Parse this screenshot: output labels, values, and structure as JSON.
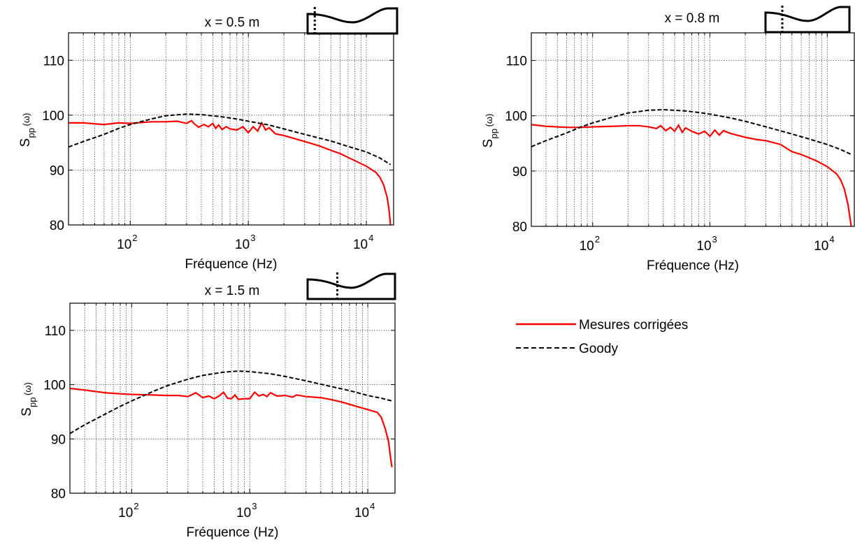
{
  "colors": {
    "measured": "#ff0000",
    "goody": "#000000"
  },
  "legend": {
    "placement": "right-middle",
    "entries": [
      {
        "name": "Mesures corrigées",
        "color": "#ff0000",
        "style": "solid"
      },
      {
        "name": "Goody",
        "color": "#000000",
        "style": "dashed"
      }
    ]
  },
  "chart_data": [
    {
      "type": "line",
      "title": "x = 0.5 m",
      "xlabel": "Fréquence (Hz)",
      "ylabel_main": "S",
      "ylabel_sub": "pp",
      "ylabel_arg": "(ω)",
      "xscale": "log",
      "xlim": [
        30,
        17000
      ],
      "ylim": [
        80,
        115
      ],
      "yticks": [
        80,
        90,
        100,
        110
      ],
      "xticks_base": "10",
      "xticks_exp": [
        "2",
        "3",
        "4"
      ],
      "grid": true,
      "probe_position": 0.08,
      "series": [
        {
          "name": "Mesures corrigées",
          "x": [
            30,
            40,
            60,
            80,
            100,
            150,
            200,
            250,
            300,
            330,
            350,
            380,
            420,
            460,
            500,
            530,
            560,
            600,
            650,
            700,
            800,
            900,
            1000,
            1100,
            1200,
            1300,
            1400,
            1500,
            1700,
            2000,
            2500,
            3000,
            4000,
            5000,
            6000,
            8000,
            10000,
            12000,
            13000,
            14000,
            15000,
            15500,
            16000
          ],
          "y": [
            98.6,
            98.6,
            98.3,
            98.6,
            98.5,
            98.8,
            98.8,
            98.9,
            98.5,
            99.0,
            98.4,
            97.8,
            98.3,
            97.9,
            98.5,
            97.6,
            98.2,
            97.4,
            97.9,
            97.5,
            97.3,
            97.9,
            96.8,
            97.9,
            97.1,
            98.6,
            97.3,
            97.7,
            96.6,
            96.3,
            95.7,
            95.2,
            94.4,
            93.6,
            93.0,
            91.7,
            90.7,
            89.6,
            88.7,
            87.3,
            85.0,
            83.0,
            80.0
          ]
        },
        {
          "name": "Goody",
          "x": [
            30,
            40,
            60,
            80,
            100,
            150,
            200,
            300,
            400,
            600,
            800,
            1000,
            1500,
            2000,
            3000,
            5000,
            7000,
            10000,
            13000,
            16000
          ],
          "y": [
            94.2,
            95.2,
            96.5,
            97.6,
            98.3,
            99.3,
            99.9,
            100.2,
            100.1,
            99.7,
            99.3,
            98.9,
            98.2,
            97.5,
            96.5,
            95.3,
            94.3,
            93.3,
            92.2,
            91.0
          ]
        }
      ]
    },
    {
      "type": "line",
      "title": "x = 0.8 m",
      "xlabel": "Fréquence (Hz)",
      "ylabel_main": "S",
      "ylabel_sub": "pp",
      "ylabel_arg": "(ω)",
      "xscale": "log",
      "xlim": [
        30,
        17000
      ],
      "ylim": [
        80,
        115
      ],
      "yticks": [
        80,
        90,
        100,
        110
      ],
      "xticks_base": "10",
      "xticks_exp": [
        "2",
        "3",
        "4"
      ],
      "grid": true,
      "probe_position": 0.2,
      "series": [
        {
          "name": "Mesures corrigées",
          "x": [
            30,
            40,
            60,
            80,
            100,
            150,
            200,
            250,
            300,
            350,
            380,
            420,
            460,
            500,
            540,
            580,
            620,
            700,
            800,
            900,
            1000,
            1100,
            1200,
            1300,
            1500,
            1700,
            2000,
            2500,
            3000,
            4000,
            5000,
            6000,
            8000,
            10000,
            12000,
            13000,
            14000,
            15000,
            15500,
            16000
          ],
          "y": [
            98.4,
            98.1,
            97.9,
            97.9,
            98.0,
            98.1,
            98.2,
            98.2,
            98.0,
            97.7,
            98.2,
            97.3,
            97.9,
            97.2,
            98.3,
            97.0,
            97.8,
            97.2,
            96.7,
            97.2,
            96.3,
            97.4,
            96.5,
            97.3,
            96.8,
            96.5,
            96.1,
            95.7,
            95.5,
            94.8,
            93.5,
            93.0,
            91.9,
            90.8,
            89.5,
            88.4,
            86.7,
            84.0,
            82.0,
            80.0
          ]
        },
        {
          "name": "Goody",
          "x": [
            30,
            40,
            60,
            80,
            100,
            150,
            200,
            300,
            400,
            600,
            800,
            1000,
            1500,
            2000,
            3000,
            5000,
            7000,
            10000,
            13000,
            16000
          ],
          "y": [
            94.4,
            95.5,
            96.9,
            98.0,
            98.7,
            99.8,
            100.5,
            101.0,
            101.1,
            100.9,
            100.6,
            100.3,
            99.6,
            99.0,
            98.0,
            96.7,
            95.8,
            94.8,
            93.9,
            93.0
          ]
        }
      ]
    },
    {
      "type": "line",
      "title": "x = 1.5 m",
      "xlabel": "Fréquence (Hz)",
      "ylabel_main": "S",
      "ylabel_sub": "pp",
      "ylabel_arg": "(ω)",
      "xscale": "log",
      "xlim": [
        30,
        17000
      ],
      "ylim": [
        80,
        115
      ],
      "yticks": [
        80,
        90,
        100,
        110
      ],
      "xticks_base": "10",
      "xticks_exp": [
        "2",
        "3",
        "4"
      ],
      "grid": true,
      "probe_position": 0.34,
      "series": [
        {
          "name": "Mesures corrigées",
          "x": [
            30,
            40,
            60,
            80,
            100,
            150,
            200,
            250,
            300,
            350,
            400,
            450,
            500,
            550,
            600,
            650,
            700,
            750,
            800,
            900,
            1000,
            1100,
            1200,
            1300,
            1400,
            1500,
            1700,
            2000,
            2300,
            2500,
            3000,
            4000,
            5000,
            6000,
            8000,
            10000,
            12000,
            13000,
            14000,
            15000,
            15500,
            16000
          ],
          "y": [
            99.3,
            99.0,
            98.5,
            98.3,
            98.2,
            98.1,
            98.0,
            98.0,
            97.8,
            98.5,
            97.6,
            97.9,
            97.4,
            97.9,
            98.6,
            97.5,
            97.4,
            98.1,
            97.3,
            97.4,
            97.4,
            98.6,
            97.9,
            98.2,
            97.8,
            98.5,
            97.9,
            98.0,
            97.7,
            98.1,
            97.8,
            97.6,
            97.2,
            96.8,
            96.0,
            95.4,
            94.9,
            94.0,
            92.0,
            89.5,
            87.0,
            84.8
          ]
        },
        {
          "name": "Goody",
          "x": [
            30,
            40,
            60,
            80,
            100,
            150,
            200,
            300,
            400,
            600,
            800,
            1000,
            1500,
            2000,
            3000,
            5000,
            7000,
            10000,
            13000,
            16000
          ],
          "y": [
            91.0,
            92.6,
            94.6,
            96.0,
            97.0,
            98.7,
            99.8,
            101.0,
            101.7,
            102.3,
            102.5,
            102.4,
            102.0,
            101.5,
            100.7,
            99.6,
            98.9,
            98.0,
            97.5,
            97.0
          ]
        }
      ]
    }
  ]
}
